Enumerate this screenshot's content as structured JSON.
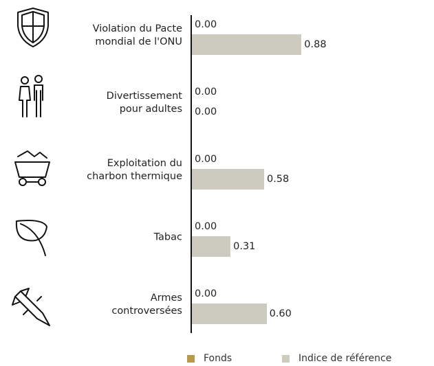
{
  "chart_data": {
    "type": "bar",
    "orientation": "horizontal",
    "categories": [
      "Violation du Pacte\nmondial de l'ONU",
      "Divertissement\npour adultes",
      "Exploitation du\ncharbon thermique",
      "Tabac",
      "Armes\ncontroversées"
    ],
    "series": [
      {
        "name": "Fonds",
        "color": "#b99a46",
        "values": [
          0,
          0,
          0,
          0,
          0
        ],
        "value_labels": [
          "0.00",
          "0.00",
          "0.00",
          "0.00",
          "0.00"
        ]
      },
      {
        "name": "Indice de référence",
        "color": "#cdcac0",
        "values": [
          0.88,
          0,
          0.58,
          0.31,
          0.6
        ],
        "value_labels": [
          "0.88",
          "0.00",
          "0.58",
          "0.31",
          "0.60"
        ]
      }
    ],
    "xlim": [
      0,
      1
    ]
  }
}
